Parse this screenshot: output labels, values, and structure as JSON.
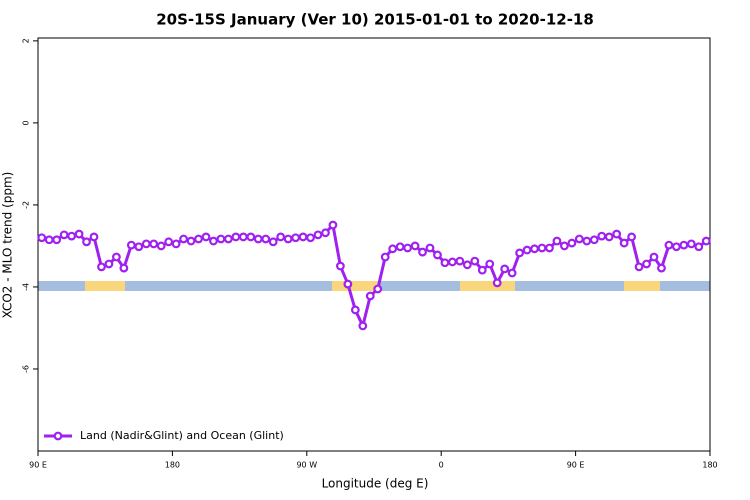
{
  "chart_data": {
    "type": "line",
    "title": "20S-15S January (Ver 10)   2015-01-01 to 2020-12-18",
    "x_label": "Longitude (deg E)",
    "y_label": "XCO2 - MLO trend (ppm)",
    "x": [
      92.5,
      97.5,
      102.5,
      107.5,
      112.5,
      117.5,
      122.5,
      127.5,
      132.5,
      137.5,
      142.5,
      147.5,
      152.5,
      157.5,
      162.5,
      167.5,
      172.5,
      177.5,
      182.5,
      187.5,
      192.5,
      197.5,
      202.5,
      207.5,
      212.5,
      217.5,
      222.5,
      227.5,
      232.5,
      237.5,
      242.5,
      247.5,
      252.5,
      257.5,
      262.5,
      267.5,
      272.5,
      277.5,
      282.5,
      287.5,
      292.5,
      297.5,
      302.5,
      307.5,
      312.5,
      317.5,
      322.5,
      327.5,
      332.5,
      337.5,
      342.5,
      347.5,
      352.5,
      357.5,
      362.5,
      367.5,
      372.5,
      377.5,
      382.5,
      387.5,
      392.5,
      397.5,
      402.5,
      407.5,
      412.5,
      417.5,
      422.5,
      427.5,
      432.5,
      437.5,
      442.5,
      447.5,
      452.5,
      457.5,
      462.5,
      467.5,
      472.5,
      477.5,
      482.5,
      487.5,
      492.5,
      497.5,
      502.5,
      507.5,
      512.5,
      517.5,
      522.5,
      527.5,
      532.5,
      537.5
    ],
    "series": [
      {
        "name": "Land (Nadir&Glint) and Ocean (Glint)",
        "color": "#a020f0",
        "values": [
          -2.8,
          -2.85,
          -2.85,
          -2.73,
          -2.76,
          -2.71,
          -2.9,
          -2.78,
          -3.51,
          -3.44,
          -3.27,
          -3.54,
          -2.98,
          -3.02,
          -2.95,
          -2.95,
          -3.0,
          -2.9,
          -2.95,
          -2.83,
          -2.88,
          -2.83,
          -2.78,
          -2.88,
          -2.83,
          -2.83,
          -2.78,
          -2.78,
          -2.78,
          -2.83,
          -2.83,
          -2.9,
          -2.78,
          -2.83,
          -2.8,
          -2.78,
          -2.8,
          -2.73,
          -2.68,
          -2.49,
          -3.49,
          -3.93,
          -4.56,
          -4.95,
          -4.22,
          -4.05,
          -3.27,
          -3.07,
          -3.02,
          -3.05,
          -3.0,
          -3.15,
          -3.05,
          -3.22,
          -3.41,
          -3.39,
          -3.37,
          -3.46,
          -3.37,
          -3.59,
          -3.44,
          -3.9,
          -3.56,
          -3.66,
          -3.17,
          -3.1,
          -3.07,
          -3.05,
          -3.05,
          -2.88,
          -3.0,
          -2.93,
          -2.83,
          -2.88,
          -2.85,
          -2.76,
          -2.78,
          -2.71,
          -2.93,
          -2.78,
          -3.51,
          -3.44,
          -3.27,
          -3.54,
          -2.98,
          -3.02,
          -2.98,
          -2.95,
          -3.02,
          -2.88
        ]
      }
    ],
    "xlim": [
      90,
      540
    ],
    "xticks": [
      {
        "value": 90,
        "label": "90 E"
      },
      180,
      {
        "value": 270,
        "label": "90 W"
      },
      {
        "value": 360,
        "label": "0"
      },
      {
        "value": 450,
        "label": "90 E"
      },
      {
        "value": 540,
        "label": "180"
      }
    ],
    "ylim": [
      -8,
      2.07
    ],
    "yticks": [
      2,
      0,
      -2,
      -4,
      -6
    ],
    "legend": "bottom-left"
  }
}
